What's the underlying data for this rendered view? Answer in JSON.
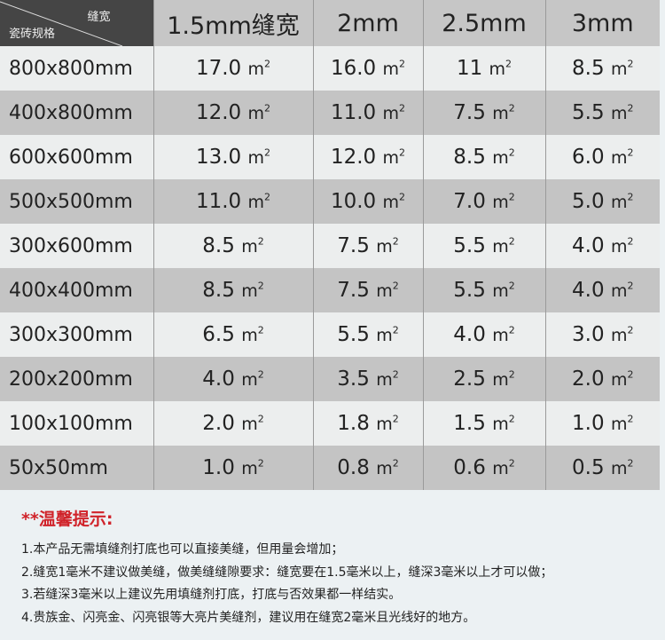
{
  "table": {
    "corner_top": "缝宽",
    "corner_bottom": "瓷砖规格",
    "columns": [
      "1.5mm缝宽",
      "2mm",
      "2.5mm",
      "3mm"
    ],
    "unit": "m",
    "unit_exp": "2",
    "rows": [
      {
        "size": "800x800mm",
        "values": [
          "17.0",
          "16.0",
          "11",
          "8.5"
        ]
      },
      {
        "size": "400x800mm",
        "values": [
          "12.0",
          "11.0",
          "7.5",
          "5.5"
        ]
      },
      {
        "size": "600x600mm",
        "values": [
          "13.0",
          "12.0",
          "8.5",
          "6.0"
        ]
      },
      {
        "size": "500x500mm",
        "values": [
          "11.0",
          "10.0",
          "7.0",
          "5.0"
        ]
      },
      {
        "size": "300x600mm",
        "values": [
          "8.5",
          "7.5",
          "5.5",
          "4.0"
        ]
      },
      {
        "size": "400x400mm",
        "values": [
          "8.5",
          "7.5",
          "5.5",
          "4.0"
        ]
      },
      {
        "size": "300x300mm",
        "values": [
          "6.5",
          "5.5",
          "4.0",
          "3.0"
        ]
      },
      {
        "size": "200x200mm",
        "values": [
          "4.0",
          "3.5",
          "2.5",
          "2.0"
        ]
      },
      {
        "size": "100x100mm",
        "values": [
          "2.0",
          "1.8",
          "1.5",
          "1.0"
        ]
      },
      {
        "size": "50x50mm",
        "values": [
          "1.0",
          "0.8",
          "0.6",
          "0.5"
        ]
      }
    ]
  },
  "notes": {
    "title": "**温馨提示:",
    "items": [
      "1.本产品无需填缝剂打底也可以直接美缝，但用量会增加；",
      "2.缝宽1毫米不建议做美缝，做美缝缝隙要求：缝宽要在1.5毫米以上，缝深3毫米以上才可以做；",
      "3.若缝深3毫米以上建议先用填缝剂打底，打底与否效果都一样结实。",
      "4.贵族金、闪亮金、闪亮银等大亮片美缝剂，建议用在缝宽2毫米且光线好的地方。"
    ]
  },
  "colors": {
    "header_dark": "#454545",
    "row_light": "#eceeee",
    "row_dark": "#c4c4c4",
    "note_title": "#d0232a"
  }
}
